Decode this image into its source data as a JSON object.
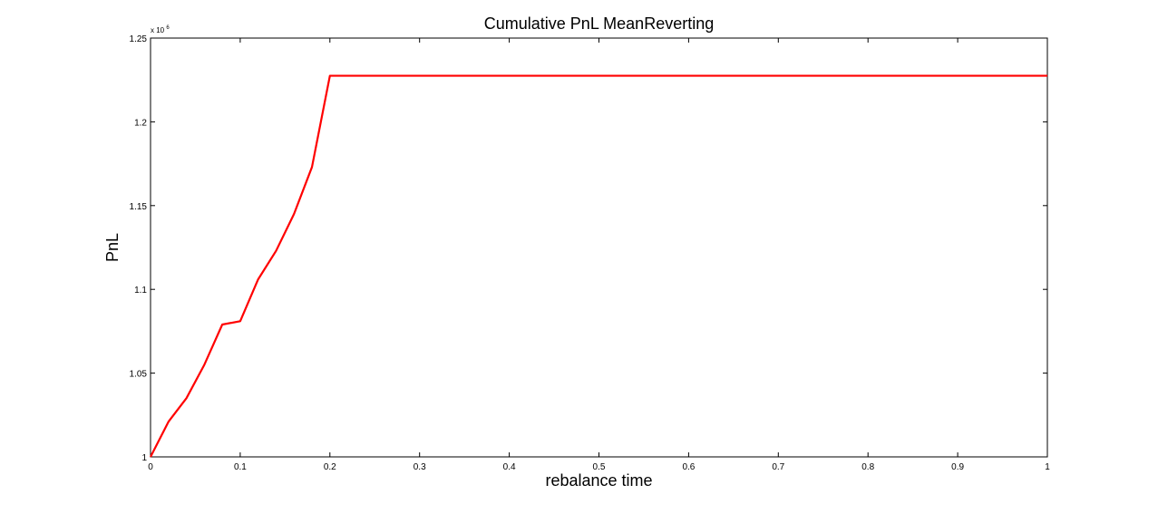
{
  "chart_data": {
    "type": "line",
    "title": "Cumulative PnL MeanReverting",
    "xlabel": "rebalance time",
    "ylabel": "PnL",
    "xlim": [
      0,
      1
    ],
    "ylim": [
      1.0,
      1.25
    ],
    "y_multiplier": "x 10",
    "y_multiplier_exponent": "6",
    "x_ticks": [
      0,
      0.1,
      0.2,
      0.3,
      0.4,
      0.5,
      0.6,
      0.7,
      0.8,
      0.9,
      1
    ],
    "x_tick_labels": [
      "0",
      "0.1",
      "0.2",
      "0.3",
      "0.4",
      "0.5",
      "0.6",
      "0.7",
      "0.8",
      "0.9",
      "1"
    ],
    "y_ticks": [
      1.0,
      1.05,
      1.1,
      1.15,
      1.2,
      1.25
    ],
    "y_tick_labels": [
      "1",
      "1.05",
      "1.1",
      "1.15",
      "1.2",
      "1.25"
    ],
    "grid": false,
    "series": [
      {
        "color": "#ff0000",
        "x": [
          0,
          0.02,
          0.04,
          0.06,
          0.08,
          0.1,
          0.12,
          0.14,
          0.16,
          0.18,
          0.2,
          0.22,
          0.3,
          0.4,
          0.5,
          0.6,
          0.7,
          0.8,
          0.9,
          1.0
        ],
        "y": [
          1.0,
          1.021,
          1.035,
          1.055,
          1.079,
          1.081,
          1.106,
          1.123,
          1.145,
          1.173,
          1.2275,
          1.2275,
          1.2275,
          1.2275,
          1.2275,
          1.2275,
          1.2275,
          1.2275,
          1.2275,
          1.2275
        ]
      }
    ]
  }
}
